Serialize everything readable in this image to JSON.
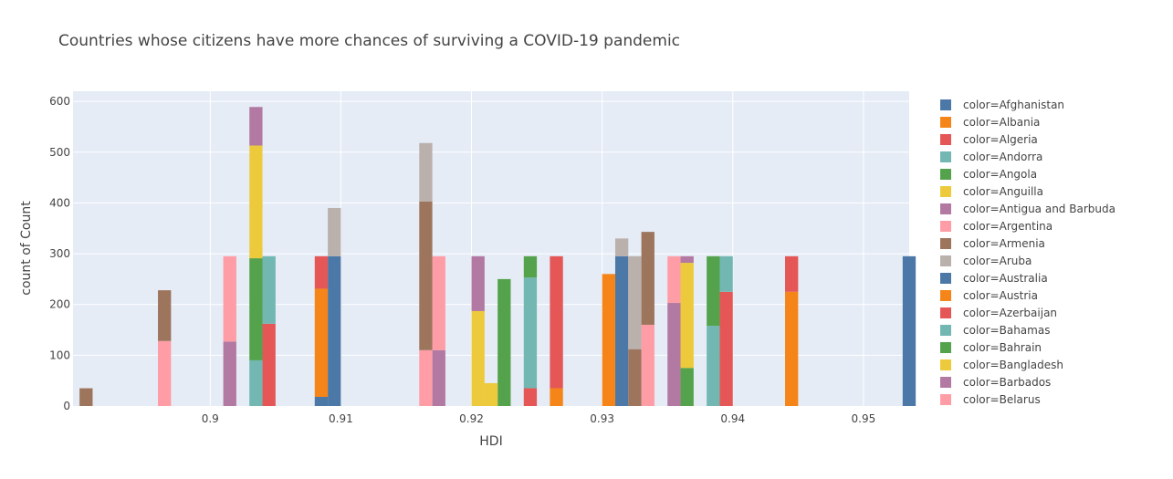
{
  "chart_data": {
    "type": "bar",
    "barmode": "stacked histogram",
    "title": "Countries whose citizens have more chances of surviving a COVID-19 pandemic",
    "xlabel": "HDI",
    "ylabel": "count of Count",
    "xlim": [
      0.8895,
      0.9535
    ],
    "ylim": [
      0,
      620
    ],
    "bin_width": 0.001,
    "x_ticks": [
      0.9,
      0.91,
      0.92,
      0.93,
      0.94,
      0.95
    ],
    "x_tick_labels": [
      "0.9",
      "0.91",
      "0.92",
      "0.93",
      "0.94",
      "0.95"
    ],
    "y_ticks": [
      0,
      100,
      200,
      300,
      400,
      500,
      600
    ],
    "y_tick_labels": [
      "0",
      "100",
      "200",
      "300",
      "400",
      "500",
      "600"
    ],
    "grid": true,
    "legend_position": "right",
    "background": "#E5ECF6",
    "series": [
      {
        "name": "color=Afghanistan",
        "color": "#4C78A8",
        "points": [
          {
            "x": 0.908,
            "y": 18
          },
          {
            "x": 0.909,
            "y": 295
          },
          {
            "x": 0.931,
            "y": 35
          },
          {
            "x": 0.931,
            "y": 260
          },
          {
            "x": 0.953,
            "y": 295
          }
        ]
      },
      {
        "name": "color=Albania",
        "color": "#F58518",
        "points": [
          {
            "x": 0.908,
            "y": 213
          },
          {
            "x": 0.926,
            "y": 35
          },
          {
            "x": 0.93,
            "y": 260
          },
          {
            "x": 0.944,
            "y": 225
          }
        ]
      },
      {
        "name": "color=Algeria",
        "color": "#E45756",
        "points": [
          {
            "x": 0.908,
            "y": 64
          },
          {
            "x": 0.904,
            "y": 162
          },
          {
            "x": 0.924,
            "y": 35
          },
          {
            "x": 0.926,
            "y": 260
          },
          {
            "x": 0.939,
            "y": 225
          },
          {
            "x": 0.944,
            "y": 70
          }
        ]
      },
      {
        "name": "color=Andorra",
        "color": "#72B7B2",
        "points": [
          {
            "x": 0.903,
            "y": 90
          },
          {
            "x": 0.904,
            "y": 133
          },
          {
            "x": 0.924,
            "y": 218
          },
          {
            "x": 0.938,
            "y": 158
          },
          {
            "x": 0.939,
            "y": 70
          }
        ]
      },
      {
        "name": "color=Angola",
        "color": "#54A24B",
        "points": [
          {
            "x": 0.903,
            "y": 201
          },
          {
            "x": 0.922,
            "y": 250
          },
          {
            "x": 0.924,
            "y": 42
          },
          {
            "x": 0.936,
            "y": 75
          },
          {
            "x": 0.938,
            "y": 137
          }
        ]
      },
      {
        "name": "color=Anguilla",
        "color": "#ECCA3B",
        "points": [
          {
            "x": 0.903,
            "y": 222
          },
          {
            "x": 0.92,
            "y": 187
          },
          {
            "x": 0.921,
            "y": 45
          },
          {
            "x": 0.936,
            "y": 207
          }
        ]
      },
      {
        "name": "color=Antigua and Barbuda",
        "color": "#B279A2",
        "points": [
          {
            "x": 0.901,
            "y": 127
          },
          {
            "x": 0.903,
            "y": 76
          },
          {
            "x": 0.917,
            "y": 110
          },
          {
            "x": 0.92,
            "y": 108
          },
          {
            "x": 0.935,
            "y": 203
          },
          {
            "x": 0.936,
            "y": 13
          }
        ]
      },
      {
        "name": "color=Argentina",
        "color": "#FF9DA6",
        "points": [
          {
            "x": 0.901,
            "y": 168
          },
          {
            "x": 0.896,
            "y": 128
          },
          {
            "x": 0.916,
            "y": 110
          },
          {
            "x": 0.917,
            "y": 185
          },
          {
            "x": 0.933,
            "y": 160
          },
          {
            "x": 0.935,
            "y": 92
          }
        ]
      },
      {
        "name": "color=Armenia",
        "color": "#9D755D",
        "points": [
          {
            "x": 0.89,
            "y": 35
          },
          {
            "x": 0.896,
            "y": 100
          },
          {
            "x": 0.916,
            "y": 293
          },
          {
            "x": 0.932,
            "y": 112
          },
          {
            "x": 0.933,
            "y": 183
          }
        ]
      },
      {
        "name": "color=Aruba",
        "color": "#BAB0AC",
        "points": [
          {
            "x": 0.909,
            "y": 95
          },
          {
            "x": 0.916,
            "y": 115
          },
          {
            "x": 0.931,
            "y": 35
          },
          {
            "x": 0.932,
            "y": 183
          }
        ]
      },
      {
        "name": "color=Australia",
        "color": "#4C78A8",
        "points": []
      },
      {
        "name": "color=Austria",
        "color": "#F58518",
        "points": []
      },
      {
        "name": "color=Azerbaijan",
        "color": "#E45756",
        "points": []
      },
      {
        "name": "color=Bahamas",
        "color": "#72B7B2",
        "points": []
      },
      {
        "name": "color=Bahrain",
        "color": "#54A24B",
        "points": []
      },
      {
        "name": "color=Bangladesh",
        "color": "#ECCA3B",
        "points": []
      },
      {
        "name": "color=Barbados",
        "color": "#B279A2",
        "points": []
      },
      {
        "name": "color=Belarus",
        "color": "#FF9DA6",
        "points": []
      }
    ]
  }
}
